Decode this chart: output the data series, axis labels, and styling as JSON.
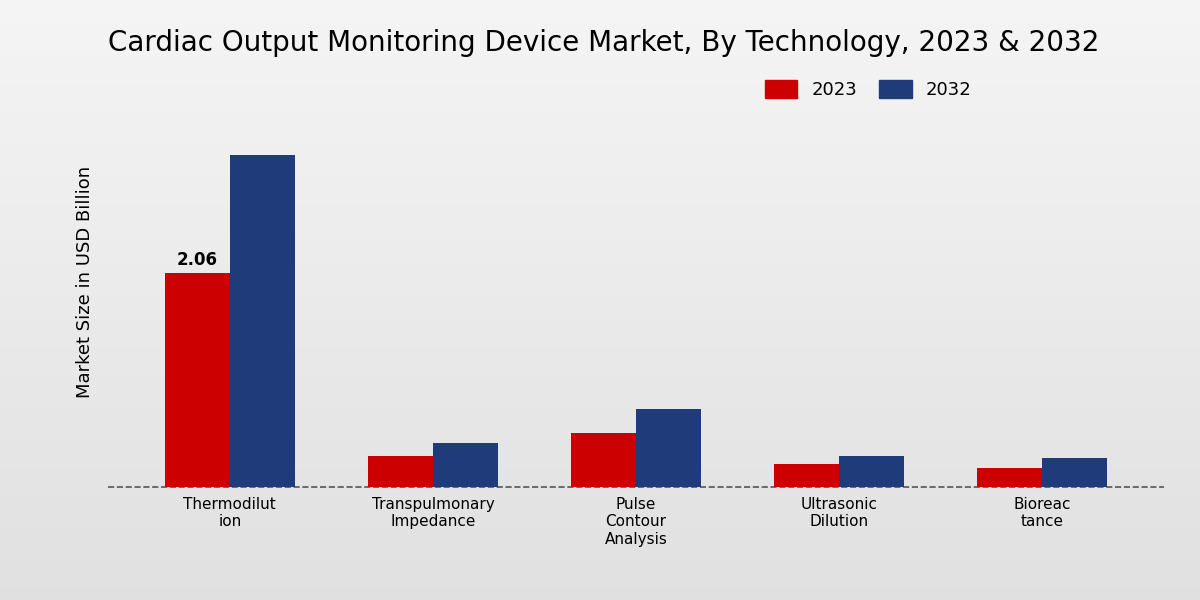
{
  "title": "Cardiac Output Monitoring Device Market, By Technology, 2023 & 2032",
  "ylabel": "Market Size in USD Billion",
  "categories": [
    "Thermodilut\nion",
    "Transpulmonary\nImpedance",
    "Pulse\nContour\nAnalysis",
    "Ultrasonic\nDilution",
    "Bioreac\ntance"
  ],
  "values_2023": [
    2.06,
    0.3,
    0.52,
    0.22,
    0.18
  ],
  "values_2032": [
    3.2,
    0.42,
    0.75,
    0.3,
    0.28
  ],
  "color_2023": "#cc0000",
  "color_2032": "#1f3b7a",
  "annotation_label": "2.06",
  "annotation_idx": 0,
  "background_top": "#f0f0f0",
  "background_bottom": "#d8d8d8",
  "bar_width": 0.32,
  "legend_labels": [
    "2023",
    "2032"
  ],
  "title_fontsize": 20,
  "axis_label_fontsize": 13,
  "ylim_max": 4.0
}
